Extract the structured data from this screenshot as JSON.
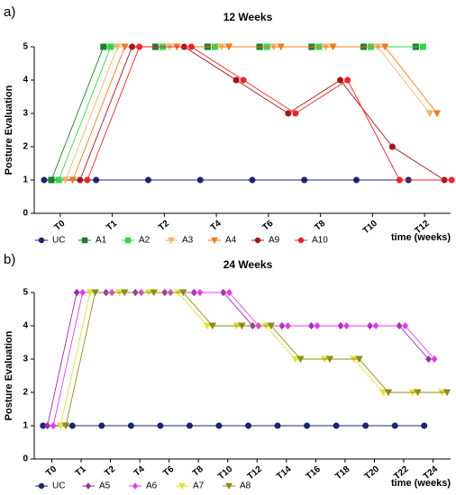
{
  "chart_data": [
    {
      "type": "line",
      "label": "a)",
      "title": "12 Weeks",
      "ylabel": "Posture Evaluation",
      "xlabel": "time (weeks)",
      "xlim": [
        -0.5,
        7.5
      ],
      "ylim": [
        0,
        5
      ],
      "yticks": [
        0,
        1,
        2,
        3,
        4,
        5
      ],
      "xticks": [
        {
          "value": 0,
          "label": "T0"
        },
        {
          "value": 1,
          "label": "T1"
        },
        {
          "value": 2,
          "label": "T2"
        },
        {
          "value": 3,
          "label": "T4"
        },
        {
          "value": 4,
          "label": "T6"
        },
        {
          "value": 5,
          "label": "T8"
        },
        {
          "value": 6,
          "label": "T10"
        },
        {
          "value": 7,
          "label": "T12"
        }
      ],
      "series": [
        {
          "name": "UC",
          "color": "#1c2470",
          "marker": "circle",
          "x": [
            -0.31,
            0.69,
            1.69,
            2.69,
            3.69,
            4.69,
            5.69,
            6.69
          ],
          "values": [
            1,
            1,
            1,
            1,
            1,
            1,
            1,
            1
          ]
        },
        {
          "name": "A1",
          "color": "#1b7f2c",
          "marker": "square",
          "x": [
            -0.17,
            0.83,
            1.83,
            2.83,
            3.83,
            4.83,
            5.83,
            6.83
          ],
          "values": [
            1,
            5,
            5,
            5,
            5,
            5,
            5,
            5
          ]
        },
        {
          "name": "A2",
          "color": "#37d64a",
          "marker": "square",
          "x": [
            -0.03,
            0.97,
            1.97,
            2.97,
            3.97,
            4.97,
            5.97,
            6.97
          ],
          "values": [
            1,
            5,
            5,
            5,
            5,
            5,
            5,
            5
          ]
        },
        {
          "name": "A3",
          "color": "#f5b36b",
          "marker": "triangle-down",
          "x": [
            0.1,
            1.1,
            2.1,
            3.1,
            4.1,
            5.1,
            6.1,
            7.1
          ],
          "values": [
            1,
            5,
            5,
            5,
            5,
            5,
            5,
            3
          ]
        },
        {
          "name": "A4",
          "color": "#ef7a1f",
          "marker": "triangle-down",
          "x": [
            0.24,
            1.24,
            2.24,
            3.24,
            4.24,
            5.24,
            6.24,
            7.24
          ],
          "values": [
            1,
            5,
            5,
            5,
            5,
            5,
            5,
            3
          ]
        },
        {
          "name": "A9",
          "color": "#a31616",
          "marker": "circle",
          "x": [
            0.38,
            1.38,
            2.38,
            3.38,
            4.38,
            5.38,
            6.38,
            7.38
          ],
          "values": [
            1,
            5,
            5,
            4,
            3,
            4,
            2,
            1
          ]
        },
        {
          "name": "A10",
          "color": "#ec2328",
          "marker": "circle",
          "x": [
            0.52,
            1.52,
            2.52,
            3.52,
            4.52,
            5.52,
            6.52,
            7.52
          ],
          "values": [
            1,
            5,
            5,
            4,
            3,
            4,
            1,
            1
          ]
        }
      ]
    },
    {
      "type": "line",
      "label": "b)",
      "title": "24 Weeks",
      "ylabel": "Posture Evaluation",
      "xlabel": "time (weeks)",
      "xlim": [
        -0.6,
        13.6
      ],
      "ylim": [
        0,
        5
      ],
      "yticks": [
        0,
        1,
        2,
        3,
        4,
        5
      ],
      "xticks": [
        {
          "value": 0,
          "label": "T0"
        },
        {
          "value": 1,
          "label": "T1"
        },
        {
          "value": 2,
          "label": "T2"
        },
        {
          "value": 3,
          "label": "T4"
        },
        {
          "value": 4,
          "label": "T6"
        },
        {
          "value": 5,
          "label": "T8"
        },
        {
          "value": 6,
          "label": "T10"
        },
        {
          "value": 7,
          "label": "T12"
        },
        {
          "value": 8,
          "label": "T14"
        },
        {
          "value": 9,
          "label": "T16"
        },
        {
          "value": 10,
          "label": "T18"
        },
        {
          "value": 11,
          "label": "T20"
        },
        {
          "value": 12,
          "label": "T22"
        },
        {
          "value": 13,
          "label": "T24"
        }
      ],
      "series": [
        {
          "name": "UC",
          "color": "#1c2470",
          "marker": "circle",
          "x": [
            -0.3,
            0.7,
            1.7,
            2.7,
            3.7,
            4.7,
            5.7,
            6.7,
            7.7,
            8.7,
            9.7,
            10.7,
            11.7,
            12.7
          ],
          "values": [
            1,
            1,
            1,
            1,
            1,
            1,
            1,
            1,
            1,
            1,
            1,
            1,
            1,
            1
          ]
        },
        {
          "name": "A5",
          "color": "#9a2bab",
          "marker": "diamond",
          "x": [
            -0.15,
            0.85,
            1.85,
            2.85,
            3.85,
            4.85,
            5.85,
            6.85,
            7.85,
            8.85,
            9.85,
            10.85,
            11.85,
            12.85
          ],
          "values": [
            1,
            5,
            5,
            5,
            5,
            5,
            5,
            4,
            4,
            4,
            4,
            4,
            4,
            3
          ]
        },
        {
          "name": "A6",
          "color": "#e23fe0",
          "marker": "diamond",
          "x": [
            0.05,
            1.05,
            2.05,
            3.05,
            4.05,
            5.05,
            6.05,
            7.05,
            8.05,
            9.05,
            10.05,
            11.05,
            12.05,
            13.05
          ],
          "values": [
            1,
            5,
            5,
            5,
            5,
            5,
            5,
            4,
            4,
            4,
            4,
            4,
            4,
            3
          ]
        },
        {
          "name": "A7",
          "color": "#dfe33c",
          "marker": "triangle-down",
          "x": [
            0.3,
            1.3,
            2.3,
            3.3,
            4.3,
            5.3,
            6.3,
            7.3,
            8.3,
            9.3,
            10.3,
            11.3,
            12.3,
            13.3
          ],
          "values": [
            1,
            5,
            5,
            5,
            5,
            4,
            4,
            4,
            3,
            3,
            3,
            2,
            2,
            2
          ]
        },
        {
          "name": "A8",
          "color": "#8d8d16",
          "marker": "triangle-down",
          "x": [
            0.48,
            1.48,
            2.48,
            3.48,
            4.48,
            5.48,
            6.48,
            7.48,
            8.48,
            9.48,
            10.48,
            11.48,
            12.48,
            13.48
          ],
          "values": [
            1,
            5,
            5,
            5,
            5,
            4,
            4,
            4,
            3,
            3,
            3,
            2,
            2,
            2
          ]
        }
      ]
    }
  ]
}
